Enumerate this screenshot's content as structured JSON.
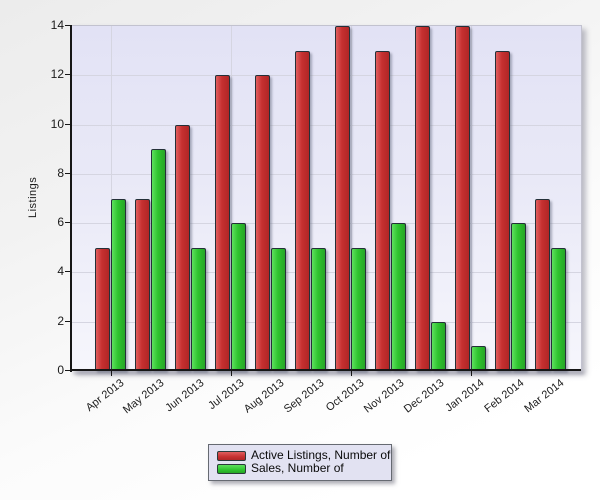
{
  "chart_data": {
    "type": "bar",
    "title": "",
    "xlabel": "",
    "ylabel": "Listings",
    "ylim": [
      0,
      14
    ],
    "yticks": [
      0,
      2,
      4,
      6,
      8,
      10,
      12,
      14
    ],
    "grid": true,
    "legend_position": "bottom-center",
    "categories": [
      "Apr 2013",
      "May 2013",
      "Jun 2013",
      "Jul 2013",
      "Aug 2013",
      "Sep 2013",
      "Oct 2013",
      "Nov 2013",
      "Dec 2013",
      "Jan 2014",
      "Feb 2014",
      "Mar 2014"
    ],
    "series": [
      {
        "name": "Active Listings, Number of",
        "color": "#c63030",
        "color_light": "#e05e5e",
        "color_dark": "#b02626",
        "values": [
          5,
          7,
          10,
          12,
          12,
          13,
          14,
          13,
          14,
          14,
          13,
          7
        ]
      },
      {
        "name": "Sales, Number of",
        "color": "#2fc42f",
        "color_light": "#5fe05f",
        "color_dark": "#26a626",
        "values": [
          7,
          9,
          5,
          6,
          5,
          5,
          5,
          6,
          2,
          1,
          6,
          5
        ]
      }
    ]
  },
  "legend": {
    "items": [
      "Active Listings, Number of",
      "Sales, Number of"
    ]
  }
}
